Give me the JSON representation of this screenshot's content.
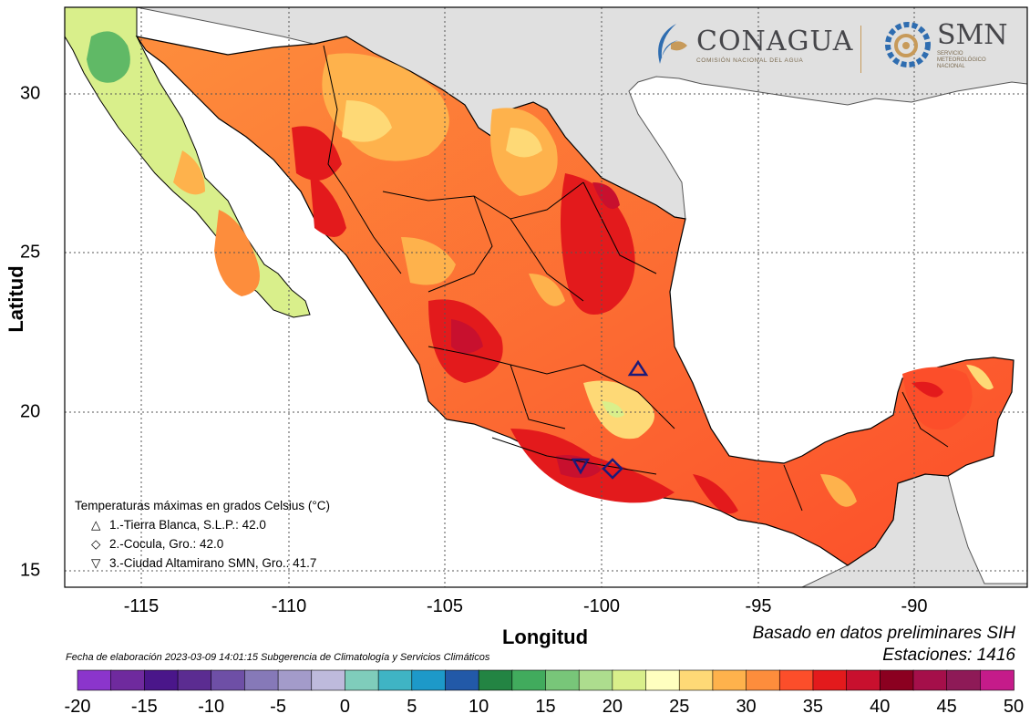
{
  "axes": {
    "xlabel": "Longitud",
    "ylabel": "Latitud",
    "xticks": [
      "-115",
      "-110",
      "-105",
      "-100",
      "-95",
      "-90"
    ],
    "yticks": [
      "30",
      "25",
      "20",
      "15"
    ]
  },
  "logos": {
    "conagua": "CONAGUA",
    "conagua_sub": "COMISIÓN NACIONAL DEL AGUA",
    "smn": "SMN",
    "smn_sub1": "SERVICIO",
    "smn_sub2": "METEOROLÓGICO",
    "smn_sub3": "NACIONAL"
  },
  "legend": {
    "title": "Temperaturas máximas en grados Celsius (°C)",
    "items": [
      {
        "symbol": "△",
        "text": "1.-Tierra Blanca, S.L.P.: 42.0"
      },
      {
        "symbol": "◇",
        "text": "2.-Cocula, Gro.: 42.0"
      },
      {
        "symbol": "▽",
        "text": "3.-Ciudad Altamirano SMN, Gro.: 41.7"
      }
    ]
  },
  "notes": {
    "based_on": "Basado en datos preliminares SIH",
    "stations": "Estaciones:  1416",
    "footer": "Fecha de elaboración 2023-03-09 14:01:15 Subgerencia de Climatología y Servicios Climáticos"
  },
  "markers": [
    {
      "name": "Tierra Blanca",
      "type": "triangle-up",
      "lon": -98.9,
      "lat": 21.4
    },
    {
      "name": "Cocula",
      "type": "diamond",
      "lon": -99.65,
      "lat": 18.25
    },
    {
      "name": "Ciudad Altamirano",
      "type": "triangle-down",
      "lon": -100.7,
      "lat": 18.35
    }
  ],
  "colorbar": {
    "labels": [
      "-20",
      "-15",
      "-10",
      "-5",
      "0",
      "5",
      "10",
      "15",
      "20",
      "25",
      "30",
      "35",
      "40",
      "45",
      "50"
    ],
    "colors": [
      "#8b35cc",
      "#6f2a9e",
      "#4a168a",
      "#5b2c91",
      "#6e4fa6",
      "#8679b8",
      "#a39bca",
      "#bebadc",
      "#7fcdbb",
      "#3fb4c4",
      "#1d99c9",
      "#2259a8",
      "#238443",
      "#41ab5d",
      "#78c679",
      "#addd8e",
      "#d9ef8b",
      "#ffffbf",
      "#fed976",
      "#feb24c",
      "#fd8d3c",
      "#fc4e2a",
      "#e31a1c",
      "#c8102e",
      "#8b0020",
      "#a50f4a",
      "#8e1a57",
      "#c51b8a"
    ]
  },
  "colors": {
    "land_other": "#e0e0e0",
    "ocean": "#ffffff",
    "border": "#000000"
  }
}
